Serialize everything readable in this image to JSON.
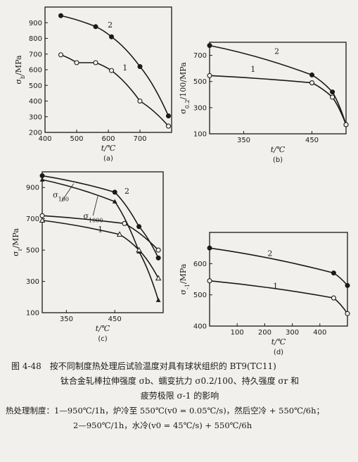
{
  "chart_data": [
    {
      "id": "a",
      "type": "line",
      "caption": "(a)",
      "xlabel": "t/℃",
      "ylabel": "σb/MPa",
      "xlim": [
        400,
        800
      ],
      "ylim": [
        200,
        1000
      ],
      "xticks": [
        400,
        500,
        600,
        700
      ],
      "yticks": [
        200,
        300,
        400,
        500,
        600,
        700,
        800,
        900
      ],
      "series": [
        {
          "name": "2",
          "marker": "filled",
          "points": [
            [
              450,
              945
            ],
            [
              560,
              875
            ],
            [
              610,
              810
            ],
            [
              700,
              620
            ],
            [
              790,
              305
            ]
          ]
        },
        {
          "name": "1",
          "marker": "open",
          "points": [
            [
              450,
              695
            ],
            [
              500,
              645
            ],
            [
              560,
              645
            ],
            [
              610,
              595
            ],
            [
              700,
              400
            ],
            [
              790,
              240
            ]
          ]
        }
      ]
    },
    {
      "id": "b",
      "type": "line",
      "caption": "(b)",
      "xlabel": "t/℃",
      "ylabel": "σ0.2/100/MPa",
      "xlim": [
        300,
        500
      ],
      "ylim": [
        100,
        800
      ],
      "xticks": [
        350,
        450
      ],
      "yticks": [
        100,
        300,
        500,
        700
      ],
      "series": [
        {
          "name": "2",
          "marker": "filled",
          "points": [
            [
              300,
              775
            ],
            [
              450,
              550
            ],
            [
              480,
              420
            ],
            [
              500,
              170
            ]
          ]
        },
        {
          "name": "1",
          "marker": "open",
          "points": [
            [
              300,
              545
            ],
            [
              450,
              490
            ],
            [
              480,
              380
            ],
            [
              500,
              170
            ]
          ]
        }
      ]
    },
    {
      "id": "c",
      "type": "line",
      "caption": "(c)",
      "xlabel": "t/℃",
      "ylabel": "σr/MPa",
      "xlim": [
        300,
        550
      ],
      "ylim": [
        100,
        1000
      ],
      "xticks": [
        350,
        450
      ],
      "yticks": [
        100,
        300,
        500,
        700,
        900
      ],
      "labels": {
        "a": "σ100",
        "b": "σ1000",
        "c": "2",
        "d": "1"
      },
      "series": [
        {
          "marker": "filled",
          "points": [
            [
              300,
              975
            ],
            [
              450,
              870
            ],
            [
              500,
              650
            ],
            [
              540,
              450
            ]
          ]
        },
        {
          "marker": "filled-triangle",
          "points": [
            [
              300,
              950
            ],
            [
              450,
              810
            ],
            [
              500,
              490
            ],
            [
              540,
              180
            ]
          ]
        },
        {
          "marker": "open",
          "points": [
            [
              300,
              720
            ],
            [
              470,
              670
            ],
            [
              540,
              500
            ]
          ]
        },
        {
          "marker": "open-triangle",
          "points": [
            [
              300,
              690
            ],
            [
              460,
              600
            ],
            [
              500,
              500
            ],
            [
              540,
              320
            ]
          ]
        }
      ]
    },
    {
      "id": "d",
      "type": "line",
      "caption": "(d)",
      "xlabel": "t/℃",
      "ylabel": "σ-1/MPa",
      "xlim": [
        0,
        500
      ],
      "ylim": [
        400,
        700
      ],
      "xticks": [
        100,
        200,
        300,
        400
      ],
      "yticks": [
        400,
        500,
        600
      ],
      "series": [
        {
          "name": "2",
          "marker": "filled",
          "points": [
            [
              0,
              650
            ],
            [
              450,
              570
            ],
            [
              500,
              530
            ]
          ]
        },
        {
          "name": "1",
          "marker": "open",
          "points": [
            [
              0,
              545
            ],
            [
              450,
              490
            ],
            [
              500,
              440
            ]
          ]
        }
      ]
    }
  ],
  "caption": {
    "line1": "图 4-48　按不同制度热处理后试验温度对具有球状组织的 BT9(TC11)",
    "line2": "钛合金轧棒拉伸强度 σb、蠕变抗力 σ0.2/100、持久强度 σr 和",
    "line3": "疲劳极限 σ-1 的影响",
    "line4": "热处理制度：1—950℃/1h，炉冷至 550℃(v0 = 0.05℃/s)，然后空冷 + 550℃/6h；",
    "line5": "2—950℃/1h，水冷(v0 = 45℃/s) + 550℃/6h"
  }
}
